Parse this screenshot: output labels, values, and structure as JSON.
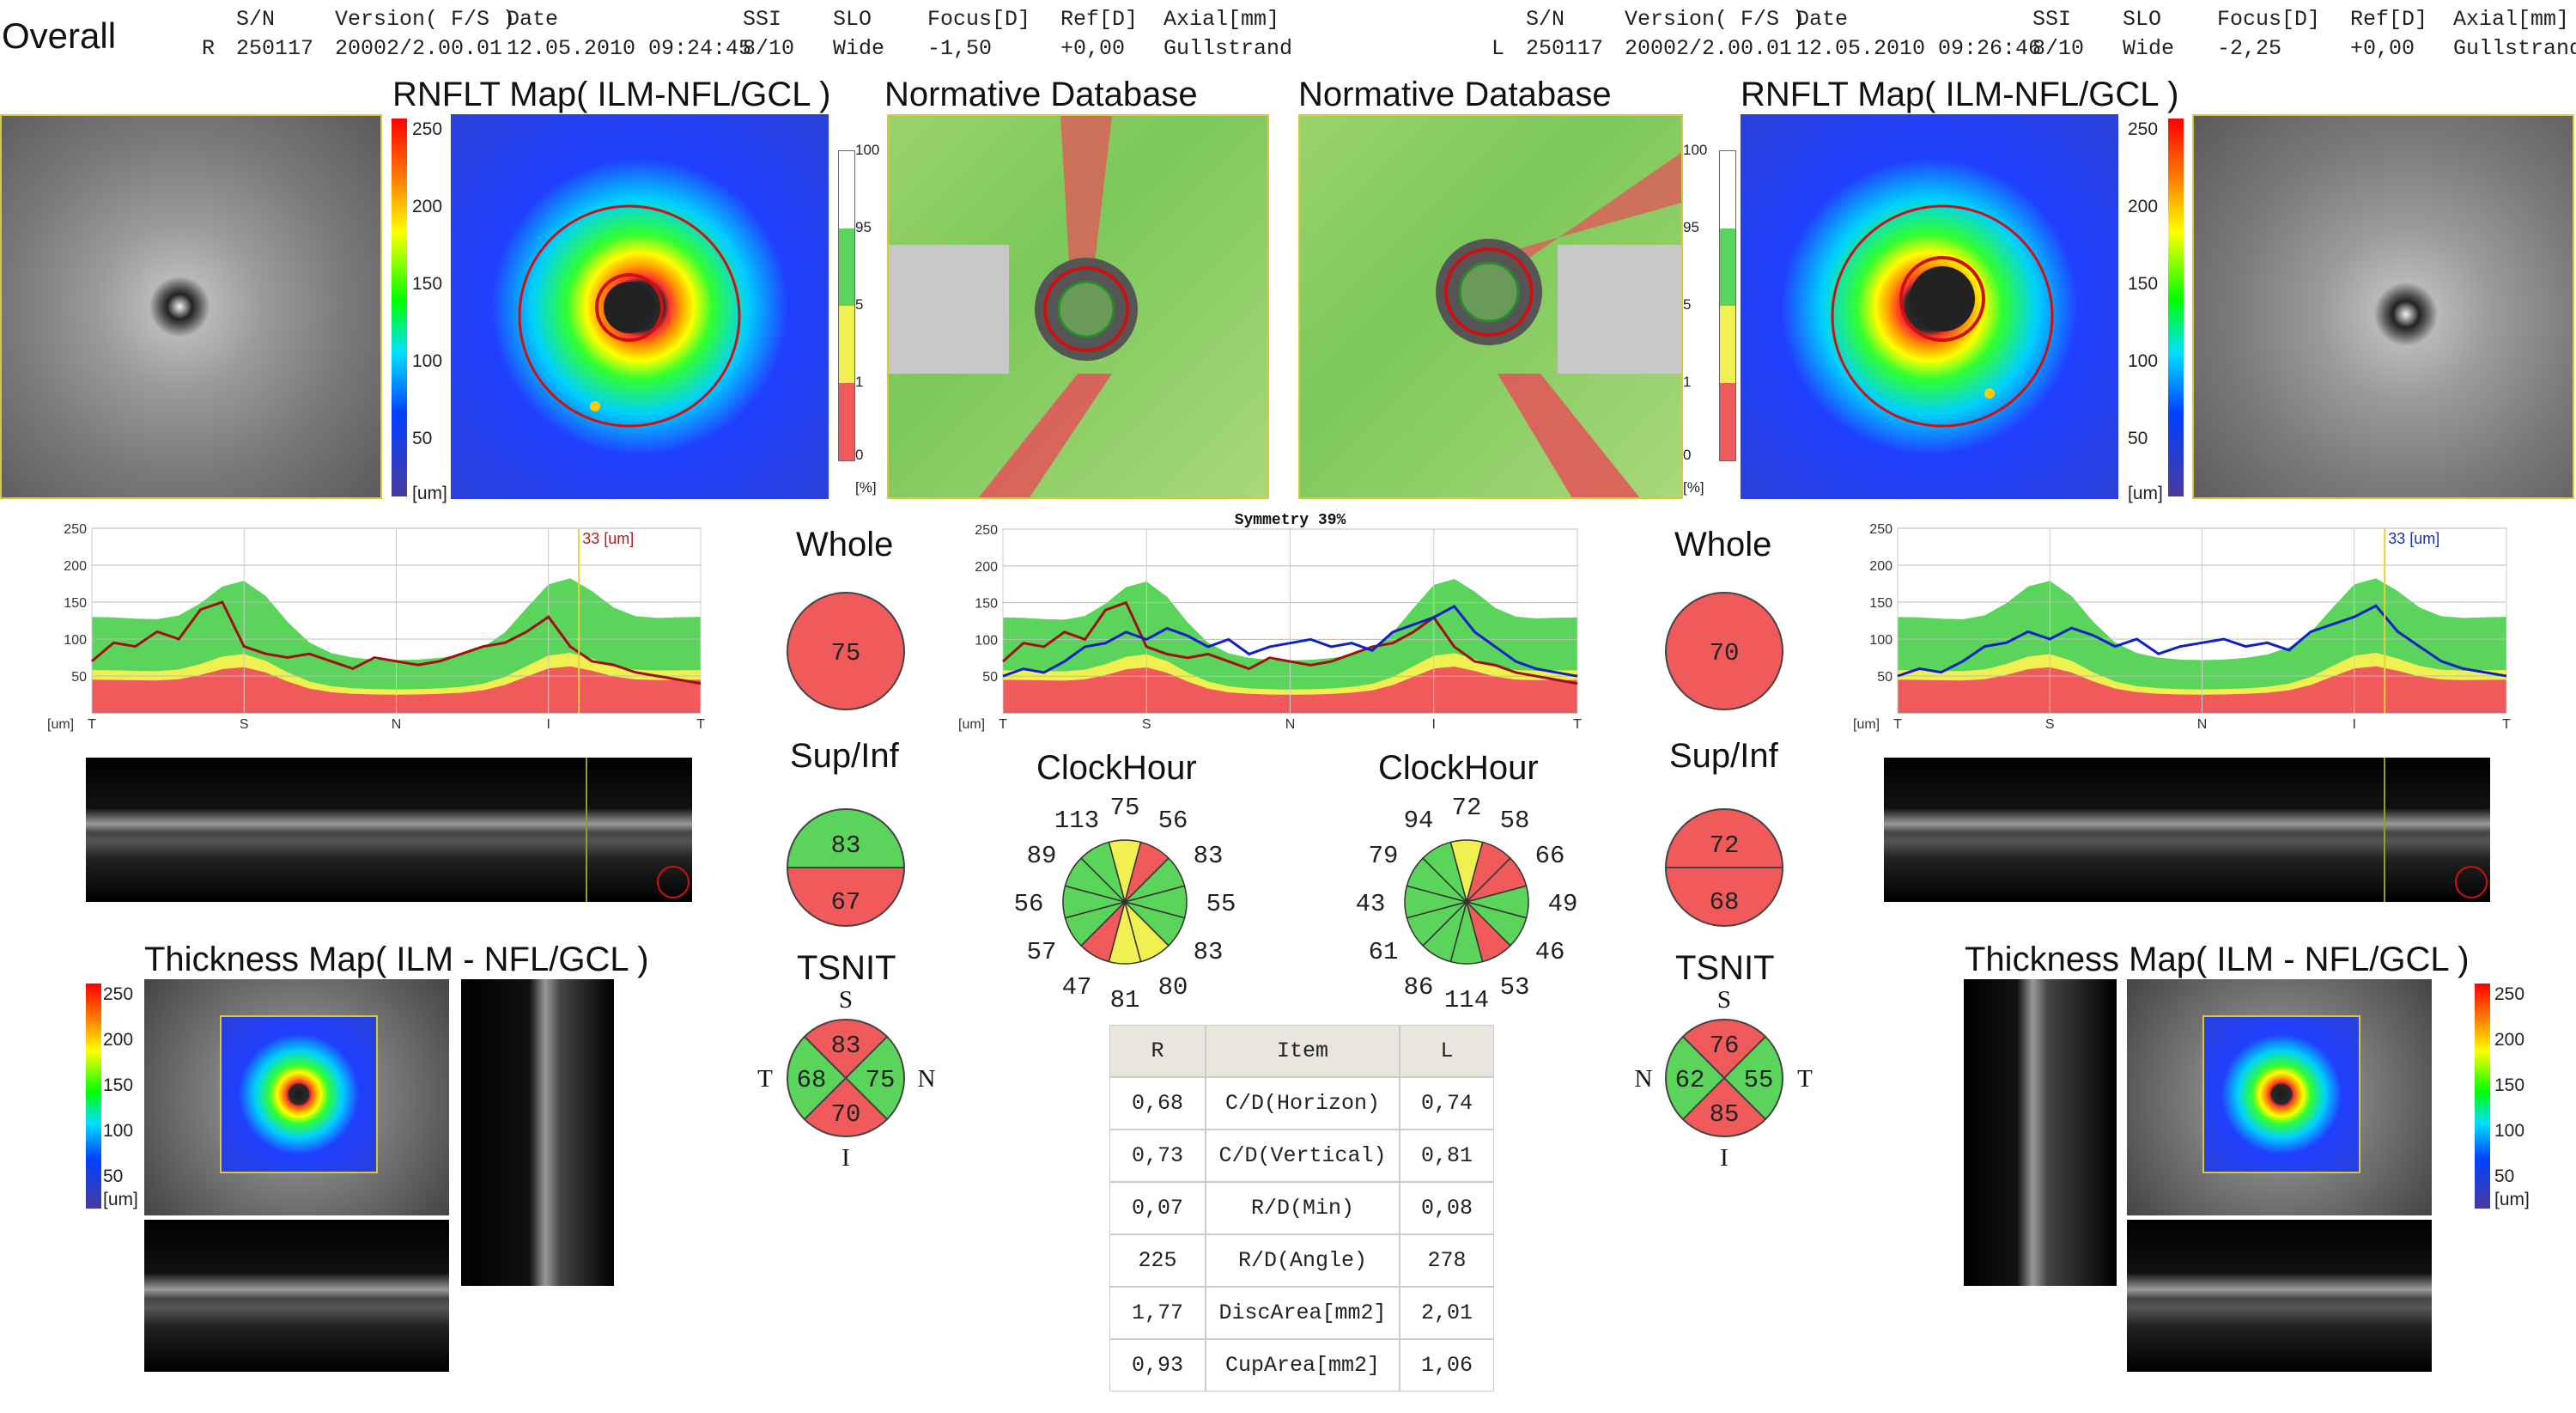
{
  "title": "Overall",
  "header": {
    "labels": [
      "S/N",
      "Version( F/S )",
      "Date",
      "SSI",
      "SLO",
      "Focus[D]",
      "Ref[D]",
      "Axial[mm]"
    ],
    "right_eye": {
      "eye": "R",
      "sn": "250117",
      "version": "20002/2.00.01",
      "date": "12.05.2010 09:24:45",
      "ssi": "8/10",
      "slo": "Wide",
      "focus": "-1,50",
      "ref": "+0,00",
      "axial": "Gullstrand"
    },
    "left_eye": {
      "eye": "L",
      "sn": "250117",
      "version": "20002/2.00.01",
      "date": "12.05.2010 09:26:46",
      "ssi": "8/10",
      "slo": "Wide",
      "focus": "-2,25",
      "ref": "+0,00",
      "axial": "Gullstrand"
    }
  },
  "panels": {
    "rnflt_title": "RNFLT Map( ILM-NFL/GCL )",
    "normative_title": "Normative Database",
    "thickness_title": "Thickness Map( ILM - NFL/GCL )",
    "colorbar_ticks": [
      "250",
      "200",
      "150",
      "100",
      "50"
    ],
    "colorbar_unit": "[um]",
    "percent_ticks": [
      "100",
      "95",
      "5",
      "1",
      "0"
    ],
    "percent_unit": "[%]"
  },
  "tsnit": {
    "y_ticks": [
      "250",
      "200",
      "150",
      "100",
      "50"
    ],
    "unit": "[um]",
    "x_labels": [
      "T",
      "S",
      "N",
      "I",
      "T"
    ],
    "marker_left": "33",
    "marker_right": "33",
    "marker_unit": "[um]",
    "symmetry": "Symmetry 39%"
  },
  "summary": {
    "whole_label": "Whole",
    "supinf_label": "Sup/Inf",
    "tsnit_label": "TSNIT",
    "clockhour_label": "ClockHour",
    "right": {
      "whole": "75",
      "sup": "83",
      "inf": "67",
      "tsnit": {
        "S": "83",
        "T": "68",
        "N": "75",
        "I": "70"
      },
      "letters": {
        "top": "S",
        "left": "T",
        "right": "N",
        "bottom": "I"
      },
      "clock": [
        "75",
        "56",
        "83",
        "55",
        "83",
        "80",
        "81",
        "47",
        "57",
        "56",
        "89",
        "113"
      ]
    },
    "left": {
      "whole": "70",
      "sup": "72",
      "inf": "68",
      "tsnit": {
        "S": "76",
        "N": "62",
        "T": "55",
        "I": "85"
      },
      "letters": {
        "top": "S",
        "left": "N",
        "right": "T",
        "bottom": "I"
      },
      "clock": [
        "72",
        "58",
        "66",
        "49",
        "46",
        "53",
        "114",
        "86",
        "61",
        "43",
        "79",
        "94"
      ]
    }
  },
  "table": {
    "headers": [
      "R",
      "Item",
      "L"
    ],
    "rows": [
      [
        "0,68",
        "C/D(Horizon)",
        "0,74"
      ],
      [
        "0,73",
        "C/D(Vertical)",
        "0,81"
      ],
      [
        "0,07",
        "R/D(Min)",
        "0,08"
      ],
      [
        "225",
        "R/D(Angle)",
        "278"
      ],
      [
        "1,77",
        "DiscArea[mm2]",
        "2,01"
      ],
      [
        "0,93",
        "CupArea[mm2]",
        "1,06"
      ]
    ]
  },
  "colors": {
    "red": "#f05a5a",
    "green": "#5ad45a",
    "yellow": "#f0f050",
    "series_right": "#a01010",
    "series_left": "#1020c8"
  },
  "chart_data": [
    {
      "type": "line",
      "x_labels": [
        "T",
        "S",
        "N",
        "I",
        "T"
      ],
      "ylim": [
        0,
        250
      ],
      "series": [],
      "values": [
        70,
        95,
        90,
        110,
        100,
        140,
        150,
        90,
        80,
        75,
        80,
        70,
        60,
        75,
        70,
        65,
        70,
        80,
        90,
        95,
        110,
        130,
        90,
        70,
        65,
        55,
        50,
        45,
        40
      ]
    },
    {
      "type": "line",
      "x_labels": [
        "T",
        "S",
        "N",
        "I",
        "T"
      ],
      "ylim": [
        0,
        250
      ],
      "series": [],
      "values": [
        50,
        60,
        55,
        70,
        90,
        95,
        110,
        100,
        115,
        105,
        90,
        100,
        80,
        90,
        95,
        100,
        90,
        95,
        85,
        110,
        120,
        130,
        145,
        110,
        90,
        70,
        60,
        55,
        50
      ]
    }
  ]
}
